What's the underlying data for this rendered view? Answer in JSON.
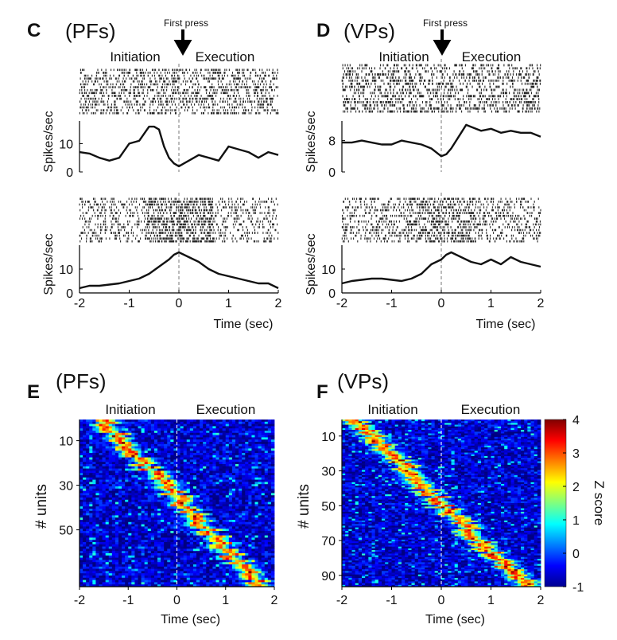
{
  "figure": {
    "panels": [
      {
        "letter": "C",
        "region": "(PFs)"
      },
      {
        "letter": "D",
        "region": "(VPs)"
      },
      {
        "letter": "E",
        "region": "(PFs)"
      },
      {
        "letter": "F",
        "region": "(VPs)"
      }
    ],
    "phase_labels": [
      "Initiation",
      "Execution"
    ],
    "event_label": "First press",
    "colorbar": {
      "label": "Z score",
      "ticks": [
        "4",
        "3",
        "2",
        "1",
        "0",
        "-1"
      ],
      "range": [
        -1,
        4
      ]
    }
  },
  "chart_data": [
    {
      "type": "line",
      "panel": "C",
      "subpanel": "top",
      "raster_above": true,
      "x": [
        -2,
        -1.8,
        -1.6,
        -1.4,
        -1.2,
        -1,
        -0.8,
        -0.6,
        -0.5,
        -0.4,
        -0.3,
        -0.2,
        -0.1,
        0,
        0.1,
        0.2,
        0.4,
        0.6,
        0.8,
        1,
        1.2,
        1.4,
        1.6,
        1.8,
        2
      ],
      "series": [
        {
          "values": [
            7,
            6.5,
            5,
            4,
            5,
            10,
            11,
            16,
            16,
            15,
            9,
            5,
            3,
            2,
            3,
            4,
            6,
            5,
            4,
            9,
            8,
            7,
            5,
            7,
            6
          ]
        }
      ],
      "xlim": [
        -2,
        2
      ],
      "ylim": [
        0,
        18
      ],
      "yticks": [
        "0",
        "10"
      ],
      "ytick_values": [
        0,
        10
      ],
      "xticks": [],
      "ylabel": "Spikes/sec",
      "xlabel": ""
    },
    {
      "type": "line",
      "panel": "C",
      "subpanel": "bottom",
      "raster_above": true,
      "x": [
        -2,
        -1.8,
        -1.6,
        -1.4,
        -1.2,
        -1,
        -0.8,
        -0.6,
        -0.4,
        -0.2,
        -0.1,
        0,
        0.1,
        0.2,
        0.4,
        0.6,
        0.8,
        1,
        1.2,
        1.4,
        1.6,
        1.8,
        2
      ],
      "series": [
        {
          "values": [
            2,
            3,
            3,
            3.5,
            4,
            5,
            6,
            8,
            11,
            14,
            16,
            17,
            16,
            15,
            13,
            10,
            8,
            7,
            6,
            5,
            4,
            4,
            2
          ]
        }
      ],
      "xlim": [
        -2,
        2
      ],
      "ylim": [
        0,
        20
      ],
      "yticks": [
        "0",
        "10"
      ],
      "ytick_values": [
        0,
        10
      ],
      "xticks": [
        "-2",
        "-1",
        "0",
        "1",
        "2"
      ],
      "ylabel": "Spikes/sec",
      "xlabel": "Time (sec)"
    },
    {
      "type": "line",
      "panel": "D",
      "subpanel": "top",
      "raster_above": true,
      "x": [
        -2,
        -1.8,
        -1.6,
        -1.4,
        -1.2,
        -1,
        -0.8,
        -0.6,
        -0.4,
        -0.2,
        -0.1,
        0,
        0.1,
        0.2,
        0.4,
        0.5,
        0.6,
        0.8,
        1,
        1.2,
        1.4,
        1.6,
        1.8,
        2
      ],
      "series": [
        {
          "values": [
            7.5,
            7.5,
            8,
            7.5,
            7,
            7,
            8,
            7.5,
            7,
            6,
            5,
            4,
            4.5,
            6,
            10,
            12,
            11.5,
            10.5,
            11,
            10,
            10.5,
            10,
            10,
            9
          ]
        }
      ],
      "xlim": [
        -2,
        2
      ],
      "ylim": [
        0,
        13
      ],
      "yticks": [
        "0",
        "8"
      ],
      "ytick_values": [
        0,
        8
      ],
      "xticks": [],
      "ylabel": "Spikes/sec",
      "xlabel": ""
    },
    {
      "type": "line",
      "panel": "D",
      "subpanel": "bottom",
      "raster_above": true,
      "x": [
        -2,
        -1.8,
        -1.6,
        -1.4,
        -1.2,
        -1,
        -0.8,
        -0.6,
        -0.4,
        -0.2,
        -0.1,
        0,
        0.1,
        0.2,
        0.4,
        0.6,
        0.8,
        1,
        1.2,
        1.4,
        1.6,
        1.8,
        2
      ],
      "series": [
        {
          "values": [
            4,
            5,
            5.5,
            6,
            6,
            5.5,
            5,
            6,
            8,
            12,
            13,
            14,
            16,
            17,
            15,
            13,
            12,
            14,
            12,
            15,
            13,
            12,
            11
          ]
        }
      ],
      "xlim": [
        -2,
        2
      ],
      "ylim": [
        0,
        20
      ],
      "yticks": [
        "0",
        "10"
      ],
      "ytick_values": [
        0,
        10
      ],
      "xticks": [
        "-2",
        "-1",
        "0",
        "1",
        "2"
      ],
      "ylabel": "Spikes/sec",
      "xlabel": "Time (sec)"
    },
    {
      "type": "heatmap",
      "panel": "E",
      "rows": 75,
      "xlim": [
        -2,
        2
      ],
      "xticks": [
        "-2",
        "-1",
        "0",
        "1",
        "2"
      ],
      "yticks": [
        "10",
        "30",
        "50"
      ],
      "ytick_values": [
        10,
        30,
        50
      ],
      "ylabel": "# units",
      "xlabel": "Time (sec)",
      "peak_x_first": -1.5,
      "peak_x_last": 1.7,
      "zlim": [
        -1,
        4
      ]
    },
    {
      "type": "heatmap",
      "panel": "F",
      "rows": 96,
      "xlim": [
        -2,
        2
      ],
      "xticks": [
        "-2",
        "-1",
        "0",
        "1",
        "2"
      ],
      "yticks": [
        "10",
        "30",
        "50",
        "70",
        "90"
      ],
      "ytick_values": [
        10,
        30,
        50,
        70,
        90
      ],
      "ylabel": "# units",
      "xlabel": "Time (sec)",
      "peak_x_first": -1.7,
      "peak_x_last": 1.7,
      "zlim": [
        -1,
        4
      ]
    }
  ]
}
